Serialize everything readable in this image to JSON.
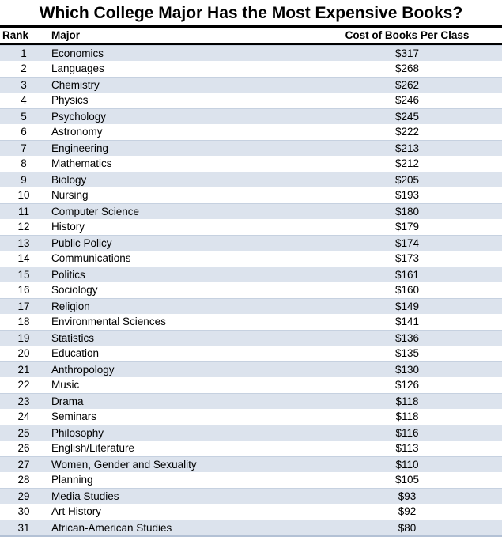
{
  "title": "Which College Major Has the Most Expensive Books?",
  "header": {
    "rank": "Rank",
    "major": "Major",
    "cost": "Cost of Books Per Class"
  },
  "colors": {
    "stripe": "#dce3ed",
    "stripe_top": "#c6d1e0",
    "rule": "#000000",
    "bottom_rule": "#b3c1d5",
    "text": "#000000"
  },
  "chart_data": {
    "type": "table",
    "title": "Which College Major Has the Most Expensive Books?",
    "columns": [
      "Rank",
      "Major",
      "Cost of Books Per Class"
    ],
    "currency": "USD",
    "rows": [
      {
        "rank": 1,
        "major": "Economics",
        "cost_usd": 317
      },
      {
        "rank": 2,
        "major": "Languages",
        "cost_usd": 268
      },
      {
        "rank": 3,
        "major": "Chemistry",
        "cost_usd": 262
      },
      {
        "rank": 4,
        "major": "Physics",
        "cost_usd": 246
      },
      {
        "rank": 5,
        "major": "Psychology",
        "cost_usd": 245
      },
      {
        "rank": 6,
        "major": "Astronomy",
        "cost_usd": 222
      },
      {
        "rank": 7,
        "major": "Engineering",
        "cost_usd": 213
      },
      {
        "rank": 8,
        "major": "Mathematics",
        "cost_usd": 212
      },
      {
        "rank": 9,
        "major": "Biology",
        "cost_usd": 205
      },
      {
        "rank": 10,
        "major": "Nursing",
        "cost_usd": 193
      },
      {
        "rank": 11,
        "major": "Computer Science",
        "cost_usd": 180
      },
      {
        "rank": 12,
        "major": "History",
        "cost_usd": 179
      },
      {
        "rank": 13,
        "major": "Public Policy",
        "cost_usd": 174
      },
      {
        "rank": 14,
        "major": "Communications",
        "cost_usd": 173
      },
      {
        "rank": 15,
        "major": "Politics",
        "cost_usd": 161
      },
      {
        "rank": 16,
        "major": "Sociology",
        "cost_usd": 160
      },
      {
        "rank": 17,
        "major": "Religion",
        "cost_usd": 149
      },
      {
        "rank": 18,
        "major": "Environmental Sciences",
        "cost_usd": 141
      },
      {
        "rank": 19,
        "major": "Statistics",
        "cost_usd": 136
      },
      {
        "rank": 20,
        "major": "Education",
        "cost_usd": 135
      },
      {
        "rank": 21,
        "major": "Anthropology",
        "cost_usd": 130
      },
      {
        "rank": 22,
        "major": "Music",
        "cost_usd": 126
      },
      {
        "rank": 23,
        "major": "Drama",
        "cost_usd": 118
      },
      {
        "rank": 24,
        "major": "Seminars",
        "cost_usd": 118
      },
      {
        "rank": 25,
        "major": "Philosophy",
        "cost_usd": 116
      },
      {
        "rank": 26,
        "major": "English/Literature",
        "cost_usd": 113
      },
      {
        "rank": 27,
        "major": "Women, Gender and Sexuality",
        "cost_usd": 110
      },
      {
        "rank": 28,
        "major": "Planning",
        "cost_usd": 105
      },
      {
        "rank": 29,
        "major": "Media Studies",
        "cost_usd": 93
      },
      {
        "rank": 30,
        "major": "Art History",
        "cost_usd": 92
      },
      {
        "rank": 31,
        "major": "African-American Studies",
        "cost_usd": 80
      }
    ]
  }
}
